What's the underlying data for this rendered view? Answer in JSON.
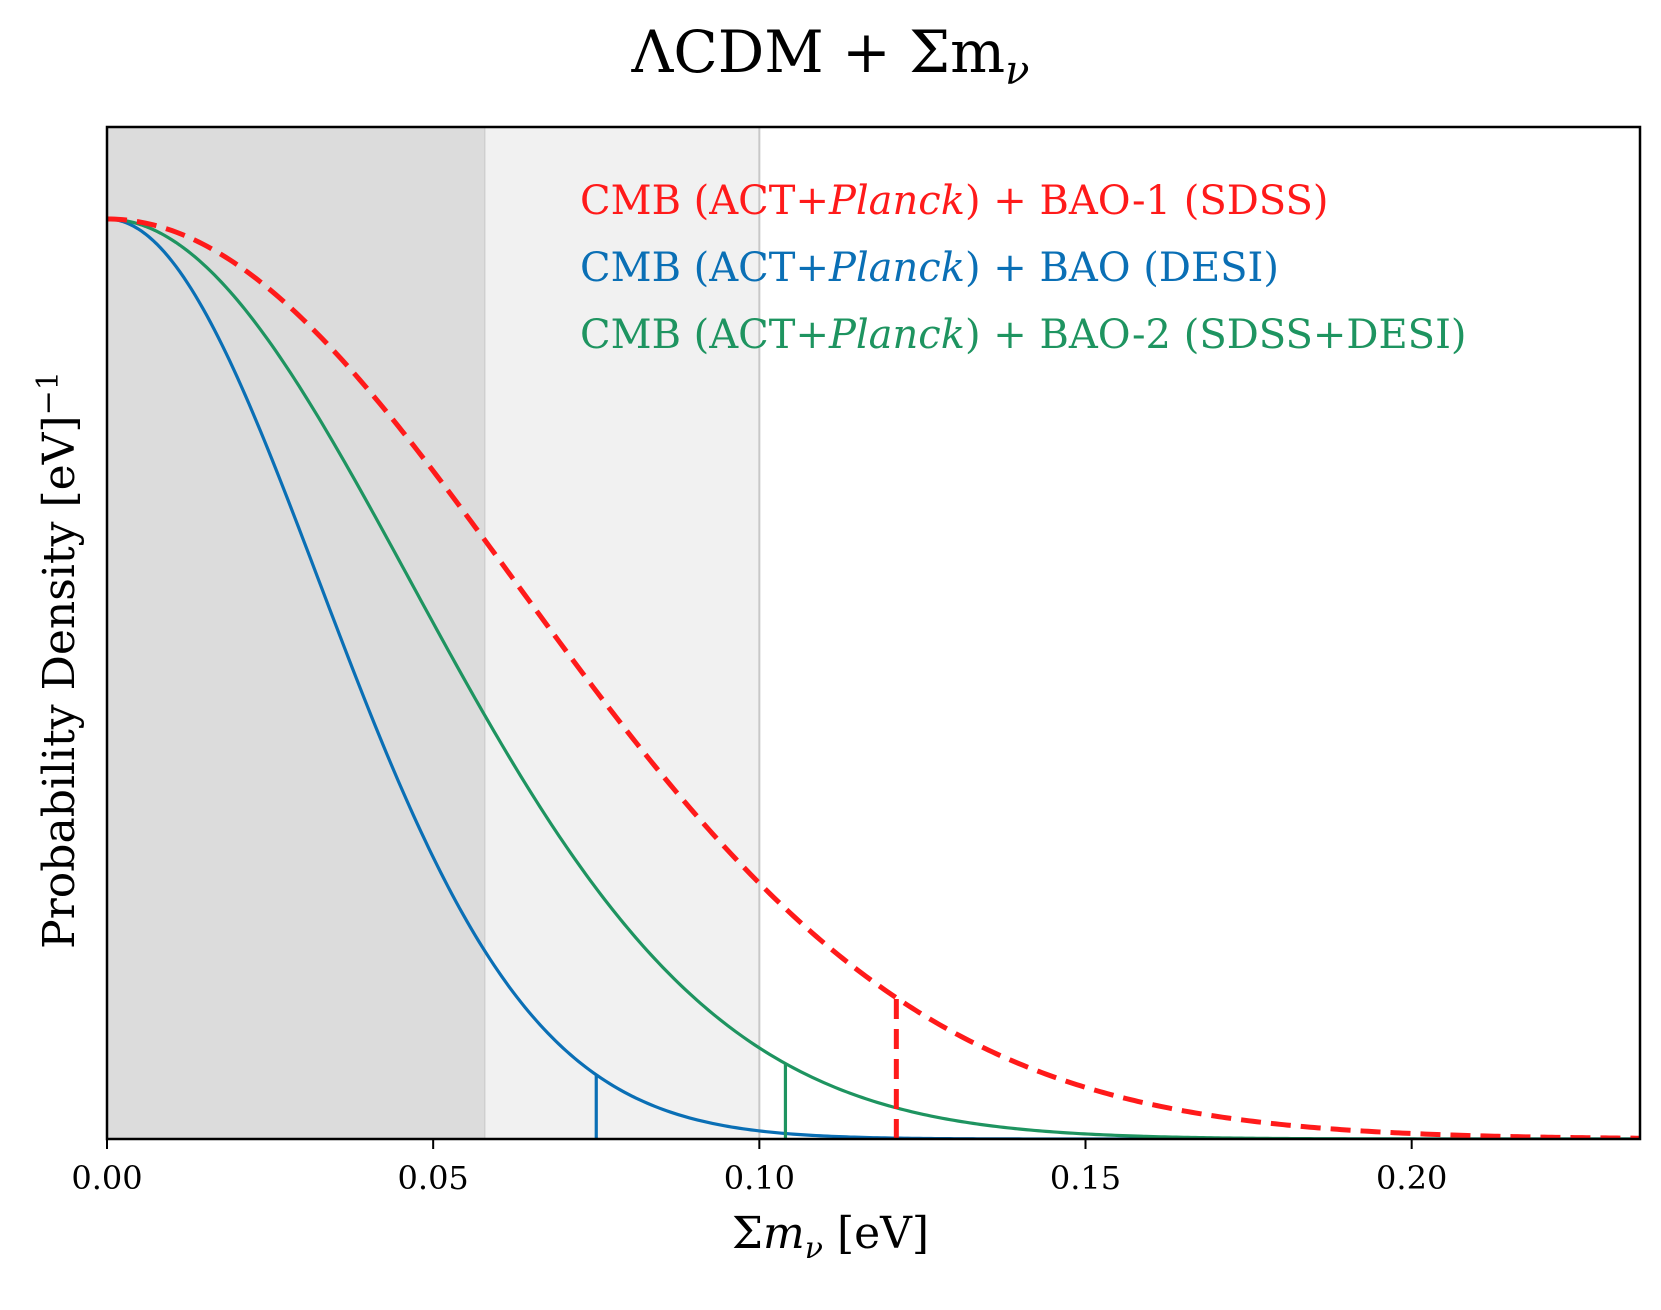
{
  "chart_data": {
    "type": "line",
    "title": {
      "text": "ΛCDM + Σm",
      "sub": "ν"
    },
    "xlabel": {
      "sym": "Σ",
      "var": "m",
      "sub": "ν",
      "unit": " [eV]"
    },
    "ylabel": {
      "text": "Probability Density [eV]",
      "sup": "−1"
    },
    "xlim": [
      0.0,
      0.235
    ],
    "ylim": [
      0.0,
      1.1
    ],
    "xticks": [
      {
        "value": 0.0,
        "label": "0.00"
      },
      {
        "value": 0.05,
        "label": "0.05"
      },
      {
        "value": 0.1,
        "label": "0.10"
      },
      {
        "value": 0.15,
        "label": "0.15"
      },
      {
        "value": 0.2,
        "label": "0.20"
      }
    ],
    "shaded_regions": [
      {
        "x0": 0.0,
        "x1": 0.058,
        "color": "#dcdcdc"
      },
      {
        "x0": 0.058,
        "x1": 0.1,
        "color": "#f1f1f1"
      }
    ],
    "series": [
      {
        "name": "CMB (ACT+Planck) + BAO-1 (SDSS)",
        "label_pre": "CMB (ACT+",
        "label_it": "Planck",
        "label_post": ") + BAO-1 (SDSS)",
        "color": "#ff1a1a",
        "style": "dashed",
        "sigma": 0.0625,
        "limit": 0.121
      },
      {
        "name": "CMB (ACT+Planck) + BAO (DESI)",
        "label_pre": "CMB (ACT+",
        "label_it": "Planck",
        "label_post": ") + BAO (DESI)",
        "color": "#0a6fb5",
        "style": "solid",
        "sigma": 0.0325,
        "limit": 0.075
      },
      {
        "name": "CMB (ACT+Planck) + BAO-2 (SDSS+DESI)",
        "label_pre": "CMB (ACT+",
        "label_it": "Planck",
        "label_post": ") + BAO-2 (SDSS+DESI)",
        "color": "#1e9460",
        "style": "solid",
        "sigma": 0.0465,
        "limit": 0.104
      }
    ],
    "peak": 1.0,
    "grid": false,
    "legend_position": "top-right"
  }
}
